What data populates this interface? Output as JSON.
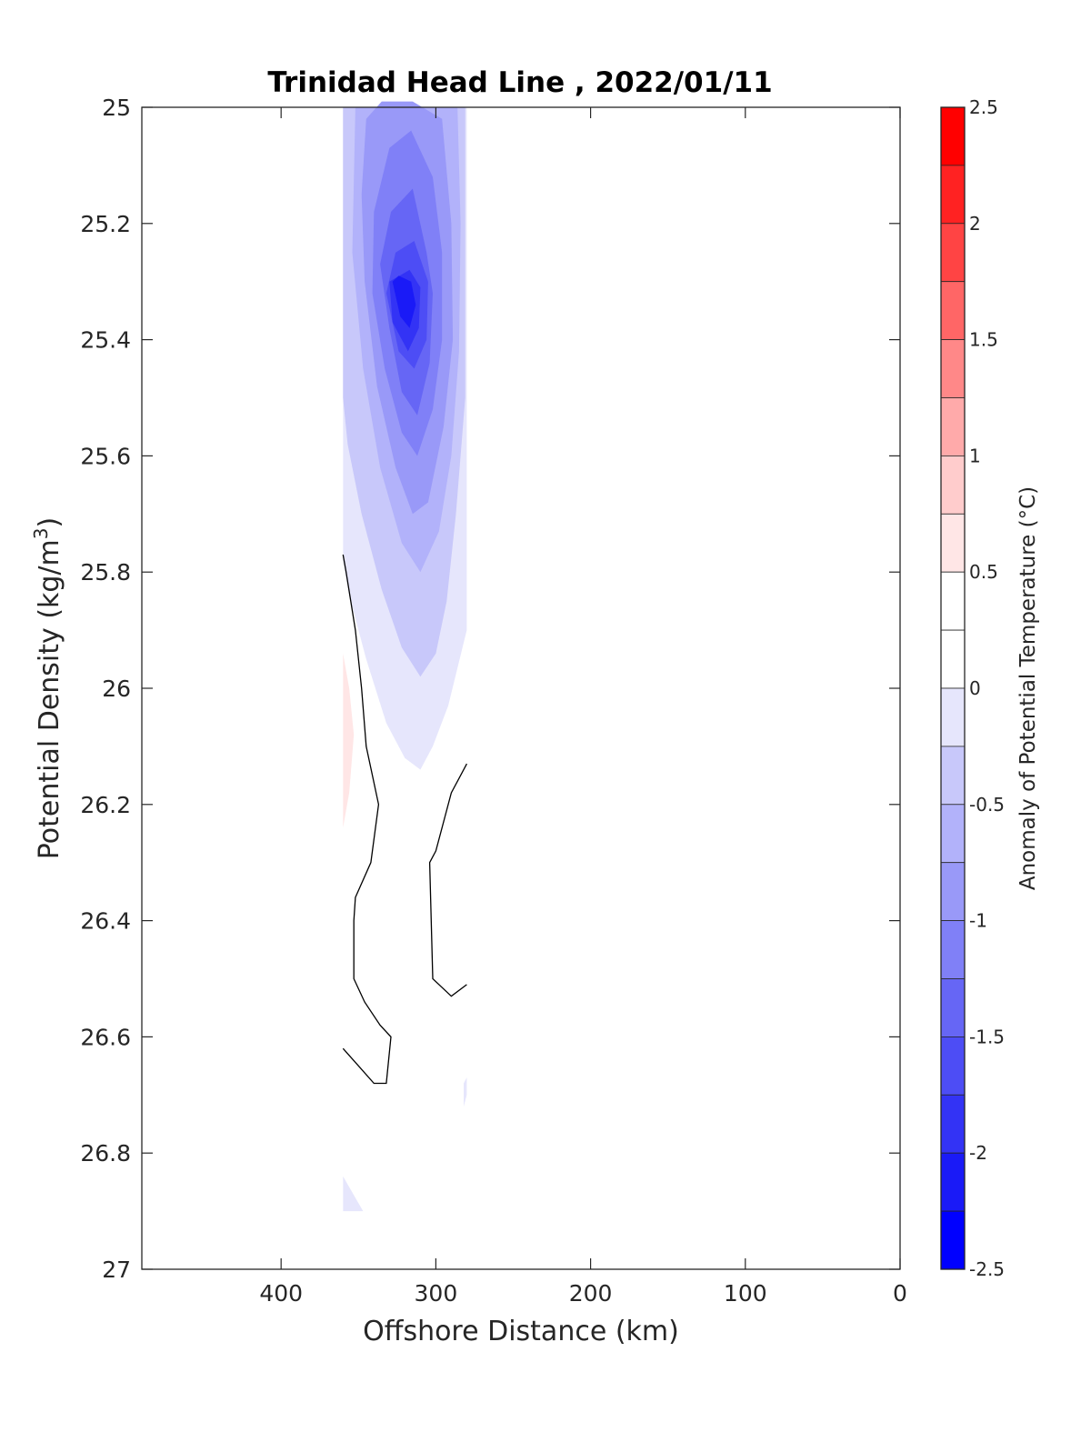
{
  "chart_data": {
    "type": "contour",
    "title": "Trinidad Head Line , 2022/01/11",
    "xlabel": "Offshore Distance (km)",
    "ylabel_main": "Potential Density (kg/m",
    "ylabel_sup": "3",
    "ylabel_close": ")",
    "xlim": [
      490,
      0
    ],
    "ylim": [
      25,
      27
    ],
    "x_reversed": true,
    "y_reversed": true,
    "x_ticks": [
      400,
      300,
      200,
      100,
      0
    ],
    "y_ticks": [
      25,
      25.2,
      25.4,
      25.6,
      25.8,
      26,
      26.2,
      26.4,
      26.6,
      26.8,
      27
    ],
    "y_tick_labels": [
      "25",
      "25.2",
      "25.4",
      "25.6",
      "25.8",
      "26",
      "26.2",
      "26.4",
      "26.6",
      "26.8",
      "27"
    ],
    "grid": false,
    "colorbar": {
      "label": "Anomaly of Potential Temperature (°C)",
      "range": [
        -2.5,
        2.5
      ],
      "step": 0.25,
      "ticks": [
        2.5,
        2,
        1.5,
        1,
        0.5,
        0,
        -0.5,
        -1,
        -1.5,
        -2,
        -2.5
      ],
      "tick_labels": [
        "2.5",
        "2",
        "1.5",
        "1",
        "0.5",
        "0",
        "-0.5",
        "-1",
        "-1.5",
        "-2",
        "-2.5"
      ],
      "colors_top_to_bottom": [
        "#ff0000",
        "#ff2222",
        "#ff4444",
        "#ff6666",
        "#ff8888",
        "#ffaaaa",
        "#ffcccc",
        "#ffe6e6",
        "#ffffff",
        "#ffffff",
        "#e6e6fc",
        "#c8c8fa",
        "#b2b2fa",
        "#9999f8",
        "#8080f7",
        "#6666f5",
        "#4d4df5",
        "#3333f5",
        "#1a1af7",
        "#0000ff"
      ]
    },
    "levels": [
      {
        "level": -0.25,
        "color": "#e6e6fc",
        "points": [
          [
            360,
            25
          ],
          [
            280,
            25
          ],
          [
            280,
            25.9
          ],
          [
            292,
            26.03
          ],
          [
            302,
            26.1
          ],
          [
            310,
            26.14
          ],
          [
            320,
            26.12
          ],
          [
            332,
            26.06
          ],
          [
            345,
            25.95
          ],
          [
            356,
            25.84
          ],
          [
            360,
            25.78
          ]
        ]
      },
      {
        "level": -0.25,
        "color": "#e6e6fc",
        "points": [
          [
            360,
            26.84
          ],
          [
            360,
            26.9
          ],
          [
            347,
            26.9
          ]
        ]
      },
      {
        "level": -0.25,
        "color": "#e6e6fc",
        "points": [
          [
            280,
            26.67
          ],
          [
            282,
            26.68
          ],
          [
            282,
            26.72
          ],
          [
            280,
            26.7
          ]
        ]
      },
      {
        "level": -0.5,
        "color": "#c8c8fa",
        "points": [
          [
            360,
            25
          ],
          [
            281,
            25
          ],
          [
            281,
            25.5
          ],
          [
            287,
            25.7
          ],
          [
            293,
            25.85
          ],
          [
            300,
            25.94
          ],
          [
            310,
            25.98
          ],
          [
            322,
            25.93
          ],
          [
            335,
            25.83
          ],
          [
            348,
            25.7
          ],
          [
            357,
            25.58
          ],
          [
            360,
            25.5
          ]
        ]
      },
      {
        "level": -0.75,
        "color": "#b2b2fa",
        "points": [
          [
            352,
            25
          ],
          [
            286,
            25
          ],
          [
            284,
            25.2
          ],
          [
            285,
            25.42
          ],
          [
            290,
            25.6
          ],
          [
            298,
            25.73
          ],
          [
            310,
            25.8
          ],
          [
            322,
            25.75
          ],
          [
            336,
            25.62
          ],
          [
            347,
            25.45
          ],
          [
            354,
            25.25
          ]
        ]
      },
      {
        "level": -1.0,
        "color": "#9999f8",
        "points": [
          [
            345,
            25.02
          ],
          [
            335,
            24.99
          ],
          [
            315,
            24.99
          ],
          [
            296,
            25.02
          ],
          [
            290,
            25.2
          ],
          [
            289,
            25.4
          ],
          [
            295,
            25.55
          ],
          [
            305,
            25.68
          ],
          [
            315,
            25.7
          ],
          [
            326,
            25.62
          ],
          [
            338,
            25.48
          ],
          [
            346,
            25.3
          ],
          [
            348,
            25.15
          ]
        ]
      },
      {
        "level": -1.25,
        "color": "#8080f7",
        "points": [
          [
            330,
            25.07
          ],
          [
            316,
            25.04
          ],
          [
            302,
            25.12
          ],
          [
            296,
            25.25
          ],
          [
            296,
            25.4
          ],
          [
            302,
            25.52
          ],
          [
            312,
            25.6
          ],
          [
            322,
            25.56
          ],
          [
            333,
            25.45
          ],
          [
            341,
            25.32
          ],
          [
            340,
            25.18
          ]
        ]
      },
      {
        "level": -1.5,
        "color": "#6666f5",
        "points": [
          [
            315,
            25.14
          ],
          [
            306,
            25.25
          ],
          [
            302,
            25.32
          ],
          [
            304,
            25.44
          ],
          [
            312,
            25.53
          ],
          [
            322,
            25.49
          ],
          [
            330,
            25.38
          ],
          [
            336,
            25.27
          ],
          [
            329,
            25.18
          ]
        ]
      },
      {
        "level": -1.75,
        "color": "#4d4df5",
        "points": [
          [
            314,
            25.23
          ],
          [
            305,
            25.3
          ],
          [
            306,
            25.4
          ],
          [
            314,
            25.45
          ],
          [
            324,
            25.42
          ],
          [
            332,
            25.32
          ],
          [
            326,
            25.25
          ]
        ]
      },
      {
        "level": -2.0,
        "color": "#3333f5",
        "points": [
          [
            317,
            25.28
          ],
          [
            310,
            25.31
          ],
          [
            311,
            25.38
          ],
          [
            318,
            25.42
          ],
          [
            328,
            25.37
          ],
          [
            330,
            25.3
          ]
        ]
      },
      {
        "level": -2.25,
        "color": "#1a1af7",
        "points": [
          [
            316,
            25.3
          ],
          [
            313,
            25.34
          ],
          [
            317,
            25.38
          ],
          [
            323,
            25.36
          ],
          [
            328,
            25.3
          ],
          [
            324,
            25.29
          ]
        ]
      },
      {
        "level": 0.25,
        "color": "#ffe6e6",
        "points": [
          [
            360,
            25.94
          ],
          [
            356,
            26.0
          ],
          [
            353,
            26.08
          ],
          [
            356,
            26.18
          ],
          [
            360,
            26.24
          ]
        ]
      }
    ],
    "zero_contours": [
      {
        "points": [
          [
            360,
            25.77
          ],
          [
            358,
            25.8
          ],
          [
            352,
            25.9
          ],
          [
            348,
            26.0
          ],
          [
            345,
            26.1
          ],
          [
            337,
            26.2
          ],
          [
            342,
            26.3
          ],
          [
            352,
            26.36
          ],
          [
            353,
            26.4
          ],
          [
            353,
            26.5
          ],
          [
            346,
            26.54
          ],
          [
            336,
            26.58
          ],
          [
            329,
            26.6
          ],
          [
            332,
            26.68
          ],
          [
            340,
            26.68
          ],
          [
            350,
            26.65
          ],
          [
            360,
            26.62
          ]
        ]
      },
      {
        "points": [
          [
            280,
            26.13
          ],
          [
            290,
            26.18
          ],
          [
            300,
            26.28
          ],
          [
            304,
            26.3
          ],
          [
            302,
            26.5
          ],
          [
            290,
            26.53
          ],
          [
            280,
            26.51
          ]
        ]
      }
    ]
  }
}
